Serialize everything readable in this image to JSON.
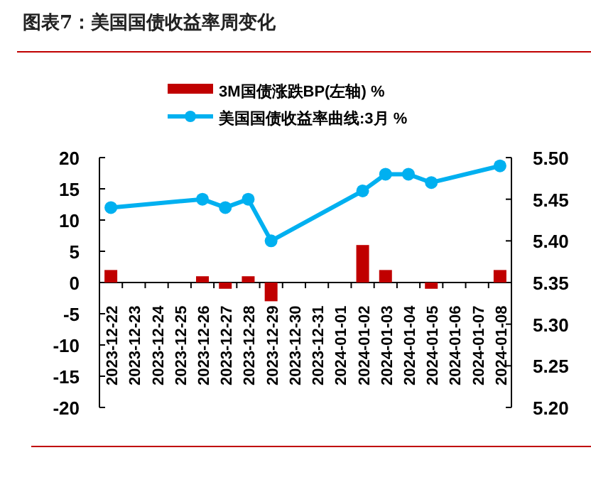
{
  "chart_data": {
    "type": "bar",
    "title": "图表7：美国国债收益率周变化",
    "categories": [
      "2023-12-22",
      "2023-12-23",
      "2023-12-24",
      "2023-12-25",
      "2023-12-26",
      "2023-12-27",
      "2023-12-28",
      "2023-12-29",
      "2023-12-30",
      "2023-12-31",
      "2024-01-01",
      "2024-01-02",
      "2024-01-03",
      "2024-01-04",
      "2024-01-05",
      "2024-01-06",
      "2024-01-07",
      "2024-01-08"
    ],
    "series": [
      {
        "name": "3M国债涨跌BP(左轴) %",
        "color": "#c00000",
        "values": [
          2,
          null,
          null,
          null,
          1,
          -1,
          1,
          -3,
          null,
          null,
          null,
          6,
          2,
          0,
          -1,
          null,
          null,
          2
        ]
      },
      {
        "name": "美国国债收益率曲线:3月 %",
        "color": "#00b0f0",
        "type": "line",
        "axis": "y2",
        "marker": "circle",
        "values": [
          5.44,
          null,
          null,
          null,
          5.45,
          5.44,
          5.45,
          5.4,
          null,
          null,
          null,
          5.46,
          5.48,
          5.48,
          5.47,
          null,
          null,
          5.49
        ]
      }
    ],
    "ylim": [
      -20,
      20
    ],
    "yticks": [
      20,
      15,
      10,
      5,
      0,
      -5,
      -10,
      -15,
      -20
    ],
    "y2lim": [
      5.2,
      5.5
    ],
    "y2ticks": [
      {
        "value": 5.5,
        "label": "5.50"
      },
      {
        "value": 5.45,
        "label": "5.45"
      },
      {
        "value": 5.4,
        "label": "5.40"
      },
      {
        "value": 5.35,
        "label": "5.35"
      },
      {
        "value": 5.3,
        "label": "5.30"
      },
      {
        "value": 5.25,
        "label": "5.25"
      },
      {
        "value": 5.2,
        "label": "5.20"
      }
    ],
    "legend": "top"
  }
}
